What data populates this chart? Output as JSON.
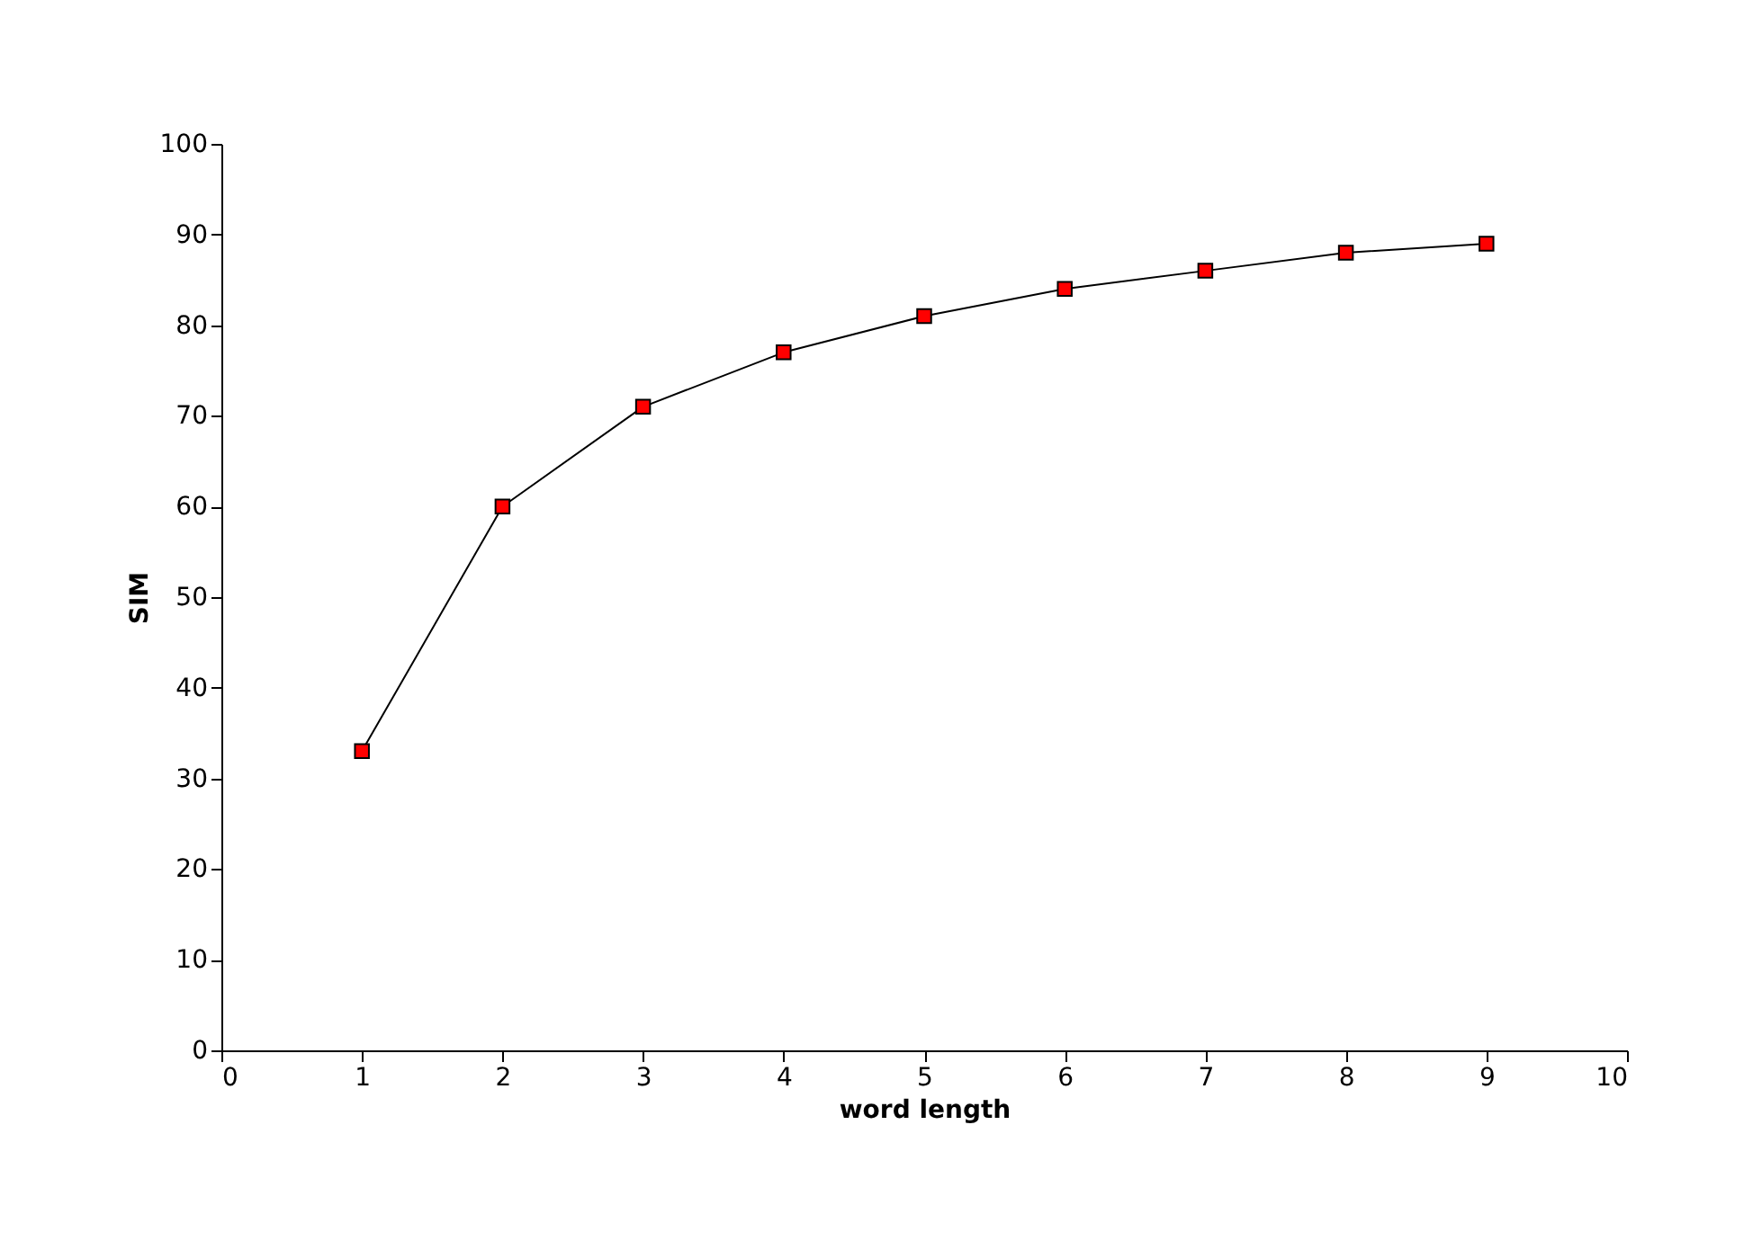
{
  "chart_data": {
    "type": "line",
    "xlabel": "word length",
    "ylabel": "SIM",
    "x": [
      1,
      2,
      3,
      4,
      5,
      6,
      7,
      8,
      9
    ],
    "series": [
      {
        "color": "#ff0000",
        "values": [
          33,
          60,
          71,
          77,
          81,
          84,
          86,
          88,
          89
        ]
      }
    ],
    "xlim": [
      0,
      10
    ],
    "xticks": [
      0,
      1,
      2,
      3,
      4,
      5,
      6,
      7,
      8,
      9,
      10
    ],
    "ylim": [
      0,
      100
    ],
    "yticks": [
      0,
      10,
      20,
      30,
      40,
      50,
      60,
      70,
      80,
      90,
      100
    ],
    "grid": false,
    "marker": "square",
    "line_style": "solid"
  }
}
